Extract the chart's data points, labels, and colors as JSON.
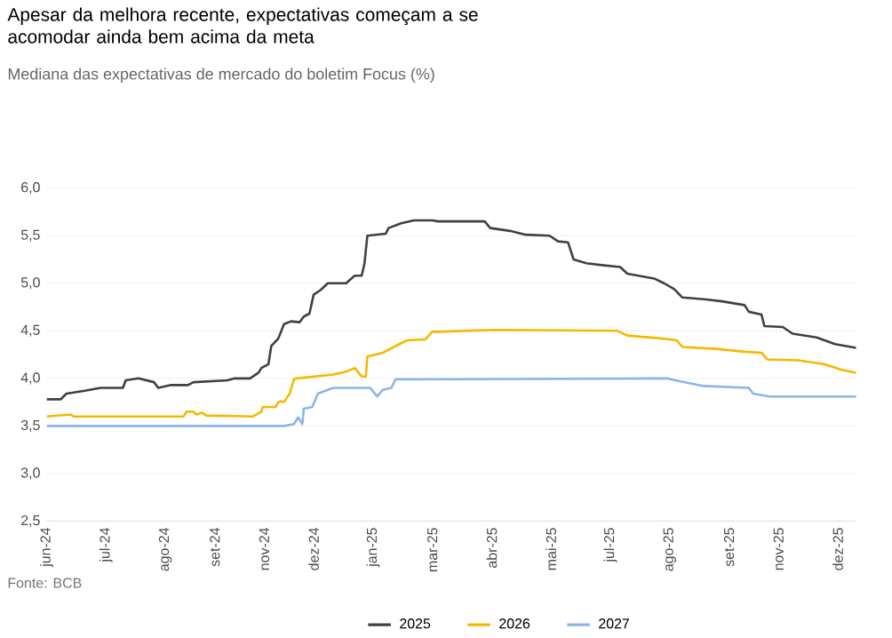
{
  "chart_data": {
    "type": "line",
    "title": "Apesar da melhora recente, expectativas começam a se acomodar ainda bem acima da meta",
    "subtitle": "Mediana das expectativas de mercado do boletim Focus (%)",
    "annotations": [
      "Fonte: BCB"
    ],
    "xlim": [
      "2024-06-03",
      "2025-12-28"
    ],
    "xticks": [
      {
        "value": "2024-06-03",
        "label": "jun-24"
      },
      {
        "value": "2024-07-15",
        "label": "jul-24"
      },
      {
        "value": "2024-08-26",
        "label": "ago-24"
      },
      {
        "value": "2024-09-30",
        "label": "set-24"
      },
      {
        "value": "2024-11-04",
        "label": "nov-24"
      },
      {
        "value": "2024-12-09",
        "label": "dez-24"
      },
      {
        "value": "2025-01-20",
        "label": "jan-25"
      },
      {
        "value": "2025-03-03",
        "label": "mar-25"
      },
      {
        "value": "2025-04-14",
        "label": "abr-25"
      },
      {
        "value": "2025-05-26",
        "label": "mai-25"
      },
      {
        "value": "2025-07-07",
        "label": "jul-25"
      },
      {
        "value": "2025-08-18",
        "label": "ago-25"
      },
      {
        "value": "2025-09-29",
        "label": "set-25"
      },
      {
        "value": "2025-11-03",
        "label": "nov-25"
      },
      {
        "value": "2025-12-15",
        "label": "dez-25"
      }
    ],
    "ylim": [
      2.5,
      6.0
    ],
    "yticks": [
      {
        "value": 2.5,
        "label": "2,5"
      },
      {
        "value": 3.0,
        "label": "3,0"
      },
      {
        "value": 3.5,
        "label": "3,5"
      },
      {
        "value": 4.0,
        "label": "4,0"
      },
      {
        "value": 4.5,
        "label": "4,5"
      },
      {
        "value": 5.0,
        "label": "5,0"
      },
      {
        "value": 5.5,
        "label": "5,5"
      },
      {
        "value": 6.0,
        "label": "6,0"
      }
    ],
    "grid": "y",
    "legend": "bottom",
    "series": [
      {
        "name": "2025",
        "color": "#404040",
        "x": [
          "2024-06-03",
          "2024-06-13",
          "2024-06-17",
          "2024-06-30",
          "2024-07-11",
          "2024-07-27",
          "2024-07-29",
          "2024-08-07",
          "2024-08-18",
          "2024-08-21",
          "2024-08-30",
          "2024-09-11",
          "2024-09-15",
          "2024-10-09",
          "2024-10-14",
          "2024-10-25",
          "2024-10-31",
          "2024-11-02",
          "2024-11-07",
          "2024-11-09",
          "2024-11-14",
          "2024-11-18",
          "2024-11-23",
          "2024-11-29",
          "2024-12-02",
          "2024-12-06",
          "2024-12-09",
          "2024-12-14",
          "2024-12-19",
          "2025-01-01",
          "2025-01-07",
          "2025-01-12",
          "2025-01-14",
          "2025-01-16",
          "2025-01-29",
          "2025-01-31",
          "2025-02-09",
          "2025-02-18",
          "2025-03-03",
          "2025-03-07",
          "2025-04-09",
          "2025-04-13",
          "2025-04-27",
          "2025-05-08",
          "2025-05-25",
          "2025-05-31",
          "2025-06-07",
          "2025-06-11",
          "2025-06-20",
          "2025-07-01",
          "2025-07-14",
          "2025-07-19",
          "2025-08-07",
          "2025-08-14",
          "2025-08-21",
          "2025-08-27",
          "2025-09-13",
          "2025-09-24",
          "2025-10-10",
          "2025-10-13",
          "2025-10-22",
          "2025-10-24",
          "2025-11-06",
          "2025-11-13",
          "2025-11-30",
          "2025-12-13",
          "2025-12-28"
        ],
        "values": [
          3.78,
          3.78,
          3.84,
          3.87,
          3.9,
          3.9,
          3.98,
          4.0,
          3.96,
          3.9,
          3.93,
          3.93,
          3.96,
          3.98,
          4.0,
          4.0,
          4.06,
          4.11,
          4.15,
          4.34,
          4.42,
          4.57,
          4.6,
          4.59,
          4.65,
          4.68,
          4.88,
          4.93,
          5.0,
          5.0,
          5.08,
          5.08,
          5.21,
          5.5,
          5.52,
          5.58,
          5.63,
          5.66,
          5.66,
          5.65,
          5.65,
          5.58,
          5.55,
          5.51,
          5.5,
          5.44,
          5.43,
          5.25,
          5.21,
          5.19,
          5.17,
          5.1,
          5.05,
          5.0,
          4.94,
          4.85,
          4.83,
          4.81,
          4.77,
          4.7,
          4.67,
          4.55,
          4.54,
          4.47,
          4.43,
          4.36,
          4.32
        ]
      },
      {
        "name": "2026",
        "color": "#f5b800",
        "x": [
          "2024-06-03",
          "2024-06-20",
          "2024-06-22",
          "2024-09-08",
          "2024-09-10",
          "2024-09-15",
          "2024-09-17",
          "2024-09-21",
          "2024-09-24",
          "2024-10-27",
          "2024-11-02",
          "2024-11-03",
          "2024-11-12",
          "2024-11-14",
          "2024-11-16",
          "2024-11-18",
          "2024-11-22",
          "2024-11-25",
          "2024-11-27",
          "2024-12-10",
          "2024-12-23",
          "2025-01-01",
          "2025-01-07",
          "2025-01-12",
          "2025-01-15",
          "2025-01-16",
          "2025-01-27",
          "2025-02-13",
          "2025-02-26",
          "2025-03-03",
          "2025-03-07",
          "2025-04-16",
          "2025-07-12",
          "2025-07-19",
          "2025-08-12",
          "2025-08-23",
          "2025-08-27",
          "2025-09-20",
          "2025-10-10",
          "2025-10-22",
          "2025-10-26",
          "2025-11-17",
          "2025-12-05",
          "2025-12-18",
          "2025-12-28"
        ],
        "values": [
          3.6,
          3.62,
          3.6,
          3.6,
          3.65,
          3.65,
          3.62,
          3.64,
          3.61,
          3.6,
          3.65,
          3.7,
          3.7,
          3.75,
          3.76,
          3.75,
          3.84,
          3.99,
          4.0,
          4.02,
          4.04,
          4.07,
          4.11,
          4.02,
          4.02,
          4.23,
          4.27,
          4.4,
          4.41,
          4.49,
          4.49,
          4.51,
          4.5,
          4.45,
          4.42,
          4.4,
          4.33,
          4.31,
          4.28,
          4.27,
          4.2,
          4.19,
          4.15,
          4.09,
          4.06
        ]
      },
      {
        "name": "2027",
        "color": "#8cb4e8",
        "x": [
          "2024-06-03",
          "2024-11-18",
          "2024-11-25",
          "2024-11-28",
          "2024-12-01",
          "2024-12-02",
          "2024-12-08",
          "2024-12-12",
          "2024-12-19",
          "2024-12-23",
          "2025-01-18",
          "2025-01-23",
          "2025-01-27",
          "2025-02-02",
          "2025-02-05",
          "2025-08-16",
          "2025-08-25",
          "2025-09-11",
          "2025-10-13",
          "2025-10-16",
          "2025-10-28",
          "2025-12-28"
        ],
        "values": [
          3.5,
          3.5,
          3.52,
          3.59,
          3.52,
          3.68,
          3.7,
          3.84,
          3.88,
          3.9,
          3.9,
          3.81,
          3.88,
          3.9,
          3.99,
          4.0,
          3.97,
          3.92,
          3.9,
          3.84,
          3.81,
          3.81
        ]
      }
    ]
  }
}
